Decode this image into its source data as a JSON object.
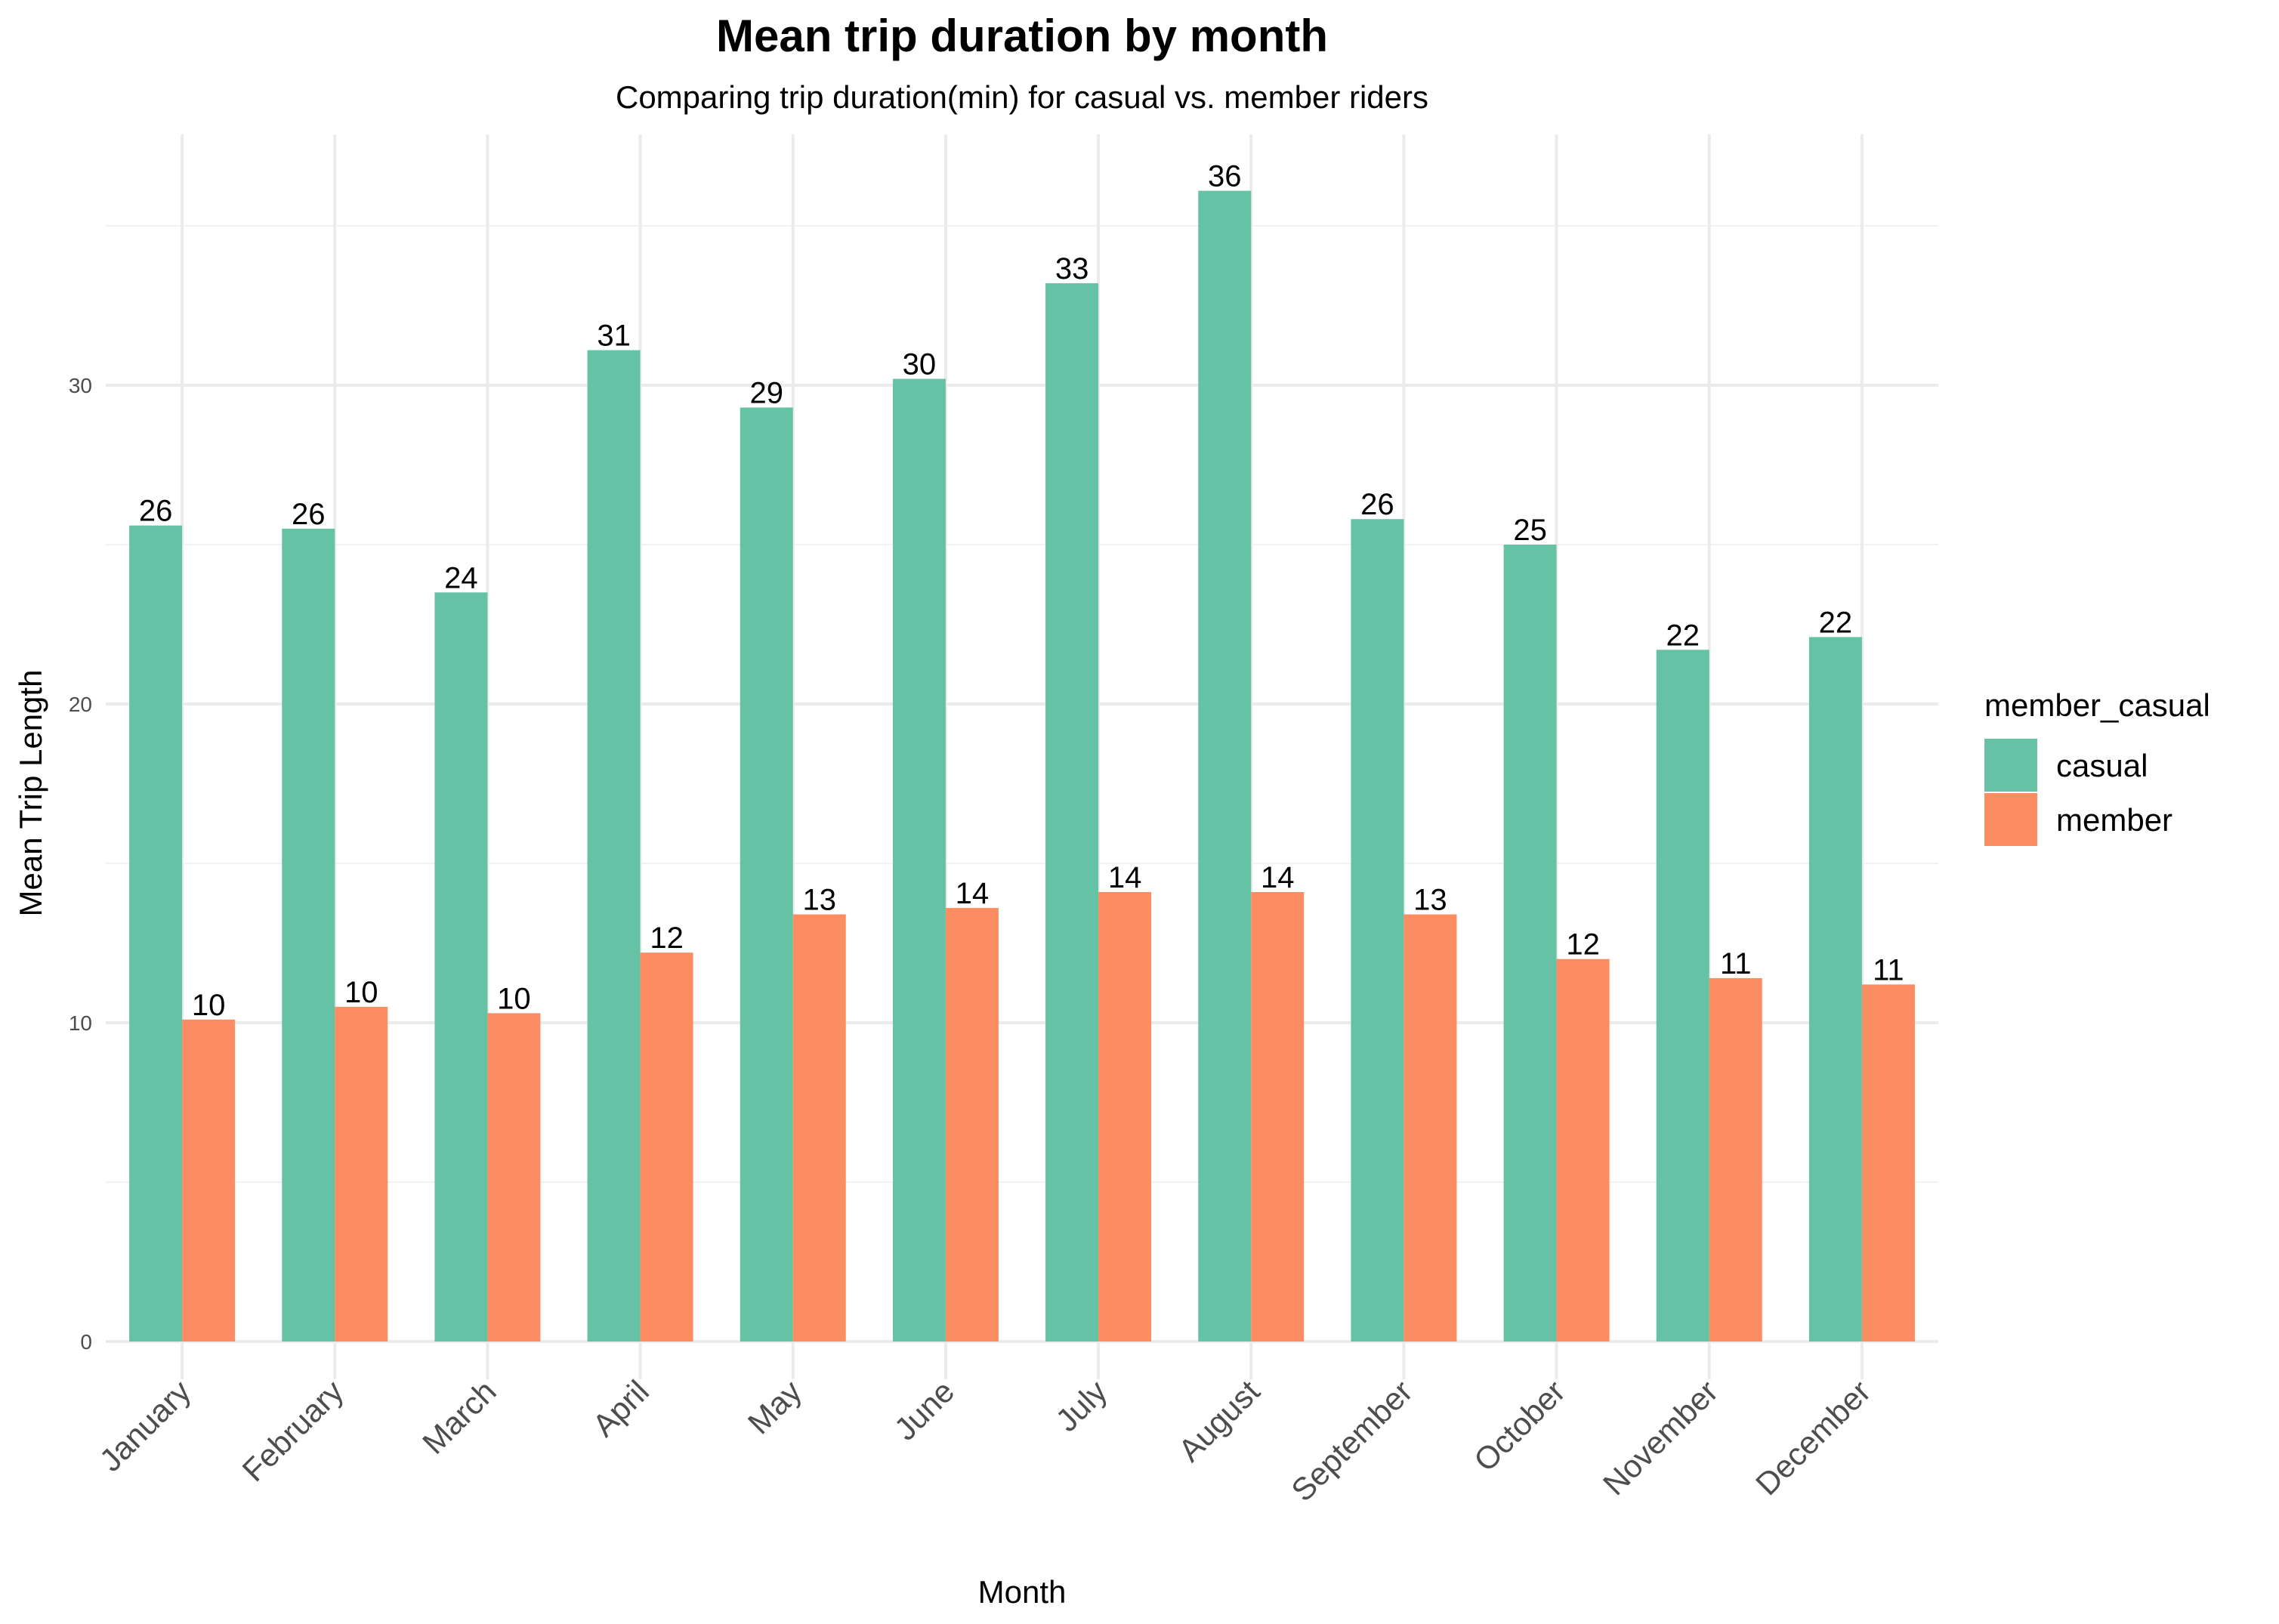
{
  "chart_data": {
    "type": "bar",
    "title": "Mean trip duration by month",
    "subtitle": "Comparing trip duration(min) for casual vs. member riders",
    "xlabel": "Month",
    "ylabel": "Mean Trip Length",
    "ylim": [
      0,
      38
    ],
    "yticks": [
      0,
      10,
      20,
      30
    ],
    "grid": true,
    "legend_title": "member_casual",
    "legend_position": "right",
    "categories": [
      "January",
      "February",
      "March",
      "April",
      "May",
      "June",
      "July",
      "August",
      "September",
      "October",
      "November",
      "December"
    ],
    "series": [
      {
        "name": "casual",
        "color": "#66c2a5",
        "values": [
          25.6,
          25.5,
          23.5,
          31.1,
          29.3,
          30.2,
          33.2,
          36.1,
          25.8,
          25.0,
          21.7,
          22.1
        ],
        "labels": [
          "26",
          "26",
          "24",
          "31",
          "29",
          "30",
          "33",
          "36",
          "26",
          "25",
          "22",
          "22"
        ]
      },
      {
        "name": "member",
        "color": "#fc8d62",
        "values": [
          10.1,
          10.5,
          10.3,
          12.2,
          13.4,
          13.6,
          14.1,
          14.1,
          13.4,
          12.0,
          11.4,
          11.2
        ],
        "labels": [
          "10",
          "10",
          "10",
          "12",
          "13",
          "14",
          "14",
          "14",
          "13",
          "12",
          "11",
          "11"
        ]
      }
    ]
  }
}
